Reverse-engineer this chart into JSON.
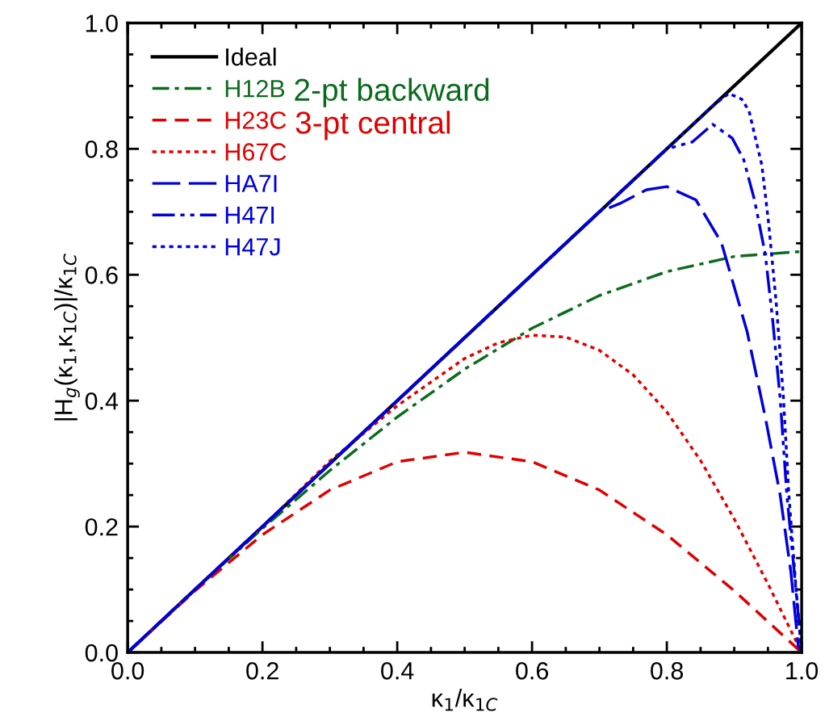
{
  "chart_data": {
    "type": "line",
    "xlabel": "κ$_{1}$/κ$_{1C}$",
    "ylabel": "|H$_{g}$(κ$_{1}$,κ$_{1C}$)|/κ$_{1C}$",
    "xlim": [
      0,
      1
    ],
    "ylim": [
      0,
      1
    ],
    "xticks": [
      {
        "value": 0,
        "label": "0.0"
      },
      0.2,
      0.4,
      0.6,
      0.8,
      {
        "value": 1,
        "label": "1.0"
      }
    ],
    "yticks": [
      {
        "value": 0,
        "label": "0.0"
      },
      0.2,
      0.4,
      0.6,
      0.8,
      {
        "value": 1,
        "label": "1.0"
      }
    ],
    "grid": false,
    "legend": "top left",
    "annotations": [
      "2-pt backward",
      "3-pt central"
    ],
    "series": [
      {
        "name": "Ideal",
        "color": "#000000",
        "line_style": "solid",
        "x": [
          0,
          1
        ],
        "values": [
          0,
          1
        ]
      },
      {
        "name": "H12B",
        "color": "#0b6b1d",
        "line_style": "dashdot",
        "x": [
          0,
          0.1,
          0.2,
          0.3,
          0.4,
          0.5,
          0.6,
          0.7,
          0.8,
          0.9,
          1.0
        ],
        "values": [
          0,
          0.1,
          0.197,
          0.289,
          0.374,
          0.45,
          0.515,
          0.567,
          0.605,
          0.629,
          0.637
        ]
      },
      {
        "name": "H23C",
        "color": "#e00000",
        "line_style": "dashed",
        "x": [
          0,
          0.1,
          0.2,
          0.3,
          0.4,
          0.5,
          0.6,
          0.7,
          0.8,
          0.9,
          1.0
        ],
        "values": [
          0,
          0.098,
          0.187,
          0.258,
          0.303,
          0.318,
          0.303,
          0.258,
          0.187,
          0.098,
          0
        ]
      },
      {
        "name": "H67C",
        "color": "#e00000",
        "line_style": "dotted",
        "x": [
          0.1,
          0.2,
          0.3,
          0.4,
          0.5,
          0.55,
          0.6,
          0.65,
          0.7,
          0.75,
          0.8,
          0.85,
          0.9,
          0.95,
          1.0
        ],
        "values": [
          0.1,
          0.2,
          0.304,
          0.392,
          0.467,
          0.492,
          0.504,
          0.501,
          0.48,
          0.441,
          0.382,
          0.305,
          0.212,
          0.109,
          0
        ]
      },
      {
        "name": "HA7I",
        "color": "#0000dd",
        "line_style": "longdash",
        "x": [
          0,
          0.7,
          0.73,
          0.77,
          0.8,
          0.843,
          0.881,
          0.919,
          0.946,
          0.968,
          0.984,
          0.995,
          1.0
        ],
        "values": [
          0,
          0.7,
          0.713,
          0.735,
          0.74,
          0.719,
          0.651,
          0.51,
          0.374,
          0.251,
          0.128,
          0.01,
          0
        ]
      },
      {
        "name": "H47I",
        "color": "#0000dd",
        "line_style": "dashdotdot",
        "x": [
          0,
          0.8,
          0.838,
          0.868,
          0.897,
          0.914,
          0.93,
          0.946,
          0.957,
          0.968,
          0.978,
          0.989,
          1.0
        ],
        "values": [
          0,
          0.8,
          0.811,
          0.839,
          0.817,
          0.783,
          0.719,
          0.633,
          0.528,
          0.405,
          0.251,
          0.128,
          0
        ]
      },
      {
        "name": "H47J",
        "color": "#0000dd",
        "line_style": "dotted",
        "x": [
          0,
          0.87,
          0.892,
          0.911,
          0.922,
          0.941,
          0.951,
          0.962,
          0.973,
          0.981,
          0.992,
          1.0
        ],
        "values": [
          0,
          0.87,
          0.888,
          0.879,
          0.86,
          0.774,
          0.682,
          0.559,
          0.405,
          0.251,
          0.097,
          0
        ]
      }
    ]
  }
}
